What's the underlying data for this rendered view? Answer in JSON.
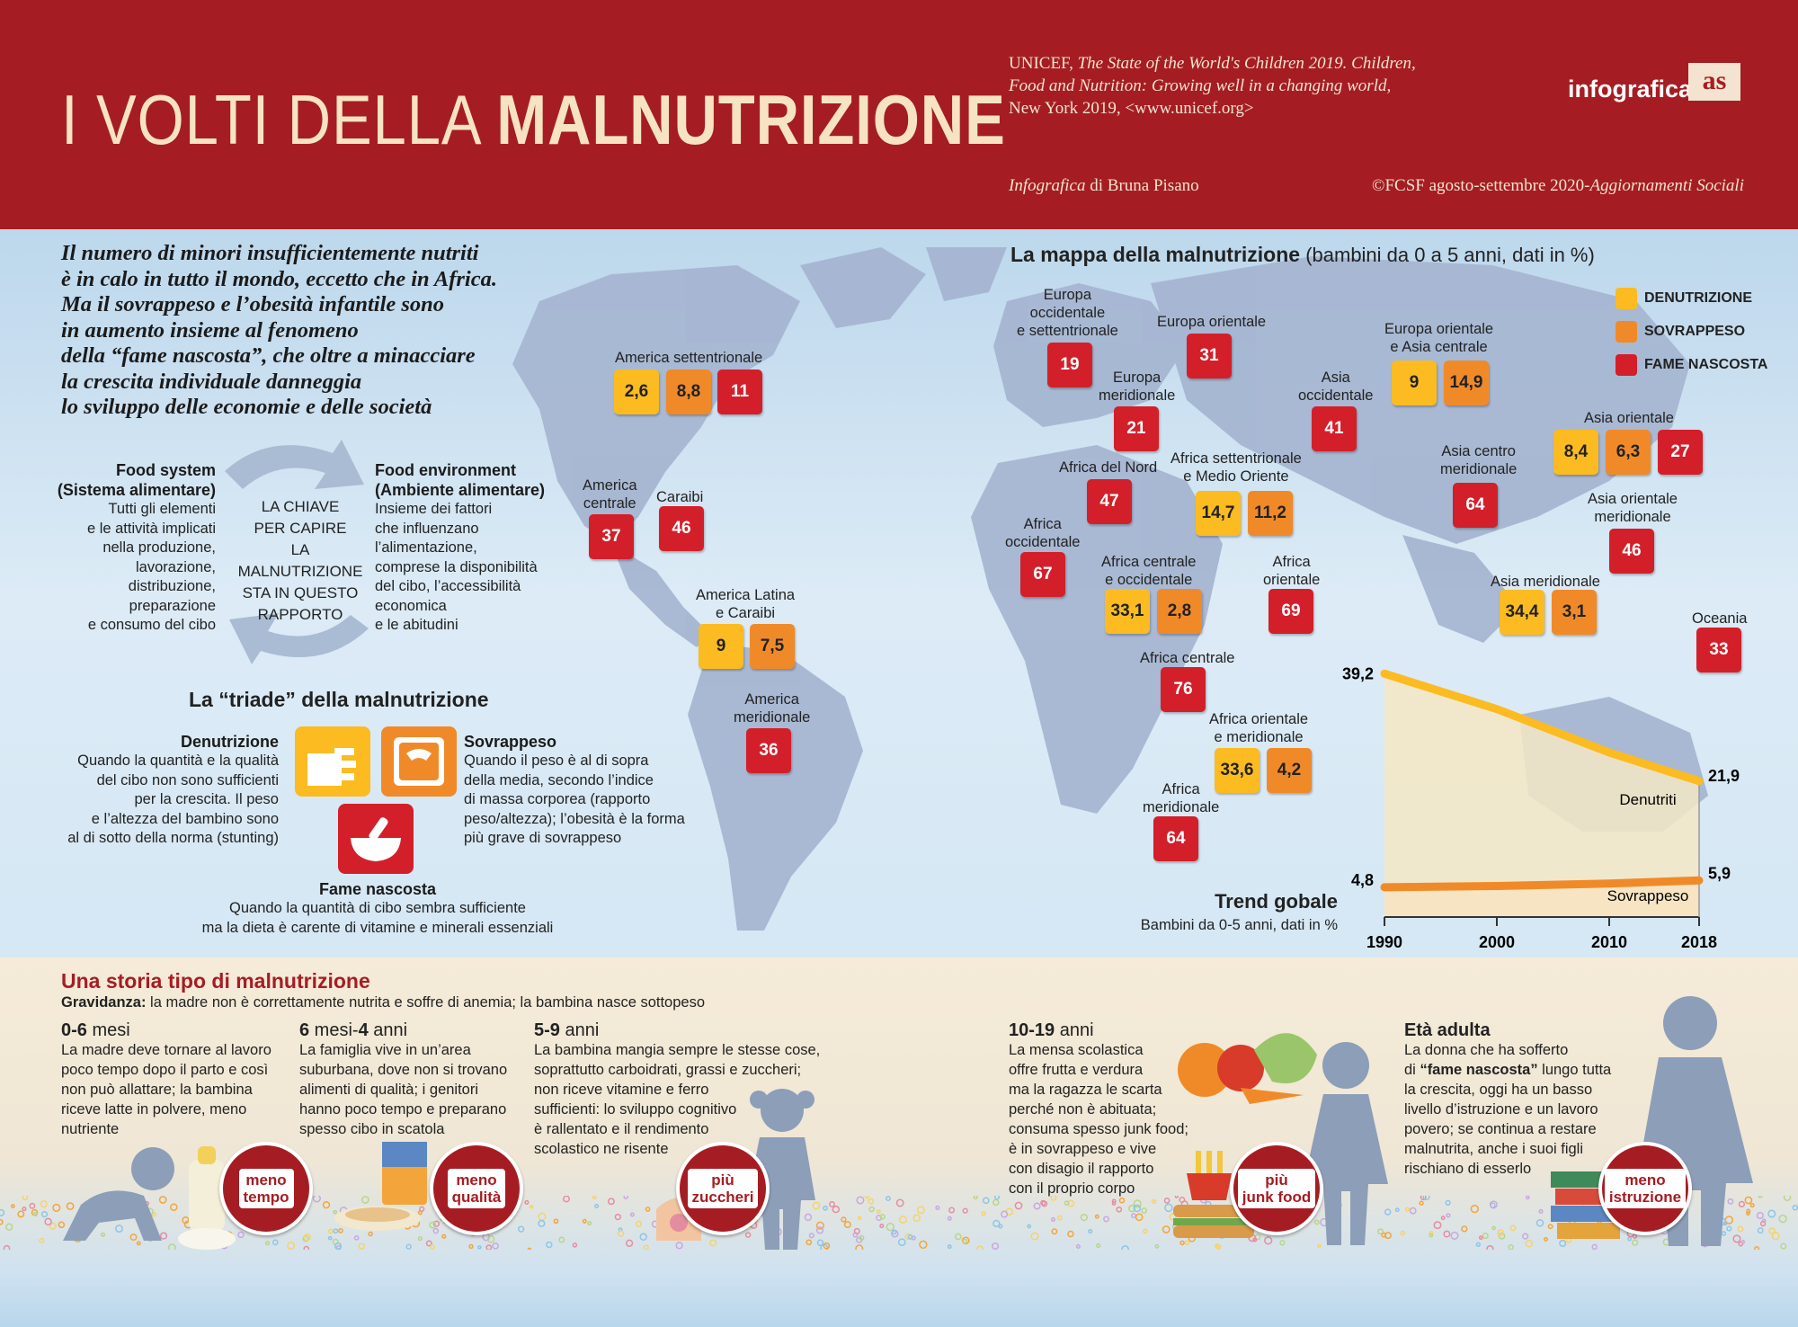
{
  "header": {
    "title_light": "I VOLTI DELLA ",
    "title_bold": "MALNUTRIZIONE",
    "source_line1_plain": "UNICEF, ",
    "source_line1_italic": "The State of the World's Children 2019. Children,",
    "source_line2": "Food and Nutrition: Growing well in a changing world,",
    "source_line3": "New York 2019, <www.unicef.org>",
    "credit_italic": "Infografica",
    "credit_rest": " di Bruna Pisano",
    "copyright_plain": "©FCSF agosto-settembre 2020-",
    "copyright_italic": "Aggiornamenti Sociali",
    "logo_text": "infografica",
    "logo_mark": "as"
  },
  "intro": [
    "Il numero di minori insufficientemente nutriti",
    "è in calo in tutto il mondo, eccetto che in Africa.",
    "Ma il sovrappeso e l’obesità infantile sono",
    "in aumento insieme al fenomeno",
    "della “fame nascosta”, che oltre a minacciare",
    "la crescita individuale danneggia",
    "lo sviluppo delle economie e delle società"
  ],
  "food_system": {
    "title": "Food system",
    "subtitle": "(Sistema alimentare)",
    "text": [
      "Tutti gli elementi",
      "e le attività implicati",
      "nella produzione,",
      "lavorazione,",
      "distribuzione,",
      "preparazione",
      "e consumo del cibo"
    ]
  },
  "food_environment": {
    "title": "Food environment",
    "subtitle": "(Ambiente alimentare)",
    "text": [
      "Insieme dei fattori",
      "che influenzano",
      "l’alimentazione,",
      "comprese la disponibilità",
      "del cibo, l’accessibilità",
      "economica",
      "e le abitudini"
    ]
  },
  "key": [
    "LA CHIAVE",
    "PER CAPIRE",
    "LA MALNUTRIZIONE",
    "STA IN QUESTO",
    "RAPPORTO"
  ],
  "triade": {
    "title": "La “triade” della malnutrizione",
    "denutrizione": {
      "title": "Denutrizione",
      "text": [
        "Quando la quantità e la qualità",
        "del cibo non sono sufficienti",
        "per la crescita. Il peso",
        "e l’altezza del bambino sono",
        "al di sotto della norma (stunting)"
      ]
    },
    "sovrappeso": {
      "title": "Sovrappeso",
      "text": [
        "Quando il peso è al di sopra",
        "della media, secondo l’indice",
        "di massa corporea (rapporto",
        "peso/altezza); l’obesità è la forma",
        "più grave di sovrappeso"
      ]
    },
    "fame": {
      "title": "Fame nascosta",
      "text": [
        "Quando la quantità di cibo sembra sufficiente",
        "ma la dieta è carente di vitamine e minerali essenziali"
      ]
    }
  },
  "map": {
    "title_bold": "La mappa della malnutrizione",
    "title_rest": " (bambini da 0 a 5 anni, dati in %)",
    "legend": [
      {
        "label": "DENUTRIZIONE",
        "color": "#fbbb21"
      },
      {
        "label": "SOVRAPPESO",
        "color": "#f08a29"
      },
      {
        "label": "FAME NASCOSTA",
        "color": "#d31f2a"
      }
    ],
    "regions": [
      {
        "name": [
          "America settentrionale"
        ],
        "values": [
          "2,6",
          "8,8",
          "11"
        ]
      },
      {
        "name": [
          "America",
          "centrale"
        ],
        "values": [
          "37"
        ]
      },
      {
        "name": [
          "Caraibi"
        ],
        "values": [
          "46"
        ]
      },
      {
        "name": [
          "America Latina",
          "e Caraibi"
        ],
        "values": [
          "9",
          "7,5"
        ]
      },
      {
        "name": [
          "America",
          "meridionale"
        ],
        "values": [
          "36"
        ]
      },
      {
        "name": [
          "Europa",
          "occidentale",
          "e settentrionale"
        ],
        "values": [
          "19"
        ]
      },
      {
        "name": [
          "Europa orientale"
        ],
        "values": [
          "31"
        ]
      },
      {
        "name": [
          "Europa",
          "meridionale"
        ],
        "values": [
          "21"
        ]
      },
      {
        "name": [
          "Asia",
          "occidentale"
        ],
        "values": [
          "41"
        ]
      },
      {
        "name": [
          "Europa orientale",
          "e Asia centrale"
        ],
        "values": [
          "9",
          "14,9"
        ]
      },
      {
        "name": [
          "Asia orientale"
        ],
        "values": [
          "8,4",
          "6,3",
          "27"
        ]
      },
      {
        "name": [
          "Africa del Nord"
        ],
        "values": [
          "47"
        ]
      },
      {
        "name": [
          "Africa settentrionale",
          "e Medio Oriente"
        ],
        "values": [
          "14,7",
          "11,2"
        ]
      },
      {
        "name": [
          "Asia centro",
          "meridionale"
        ],
        "values": [
          "64"
        ]
      },
      {
        "name": [
          "Asia orientale",
          "meridionale"
        ],
        "values": [
          "46"
        ]
      },
      {
        "name": [
          "Africa",
          "occidentale"
        ],
        "values": [
          "67"
        ]
      },
      {
        "name": [
          "Africa centrale",
          "e occidentale"
        ],
        "values": [
          "33,1",
          "2,8"
        ]
      },
      {
        "name": [
          "Africa",
          "orientale"
        ],
        "values": [
          "69"
        ]
      },
      {
        "name": [
          "Asia meridionale"
        ],
        "values": [
          "34,4",
          "3,1"
        ]
      },
      {
        "name": [
          "Oceania"
        ],
        "values": [
          "33"
        ]
      },
      {
        "name": [
          "Africa centrale"
        ],
        "values": [
          "76"
        ]
      },
      {
        "name": [
          "Africa orientale",
          "e meridionale"
        ],
        "values": [
          "33,6",
          "4,2"
        ]
      },
      {
        "name": [
          "Africa",
          "meridionale"
        ],
        "values": [
          "64"
        ]
      }
    ]
  },
  "chart_data": {
    "type": "area",
    "title": "Trend gobale",
    "subtitle": "Bambini da 0-5 anni, dati in %",
    "x": [
      1990,
      2000,
      2010,
      2018
    ],
    "x_ticks": [
      "1990",
      "2000",
      "2010",
      "2018"
    ],
    "series": [
      {
        "name": "Denutriti",
        "x": [
          1990,
          2000,
          2010,
          2018
        ],
        "values": [
          39.2,
          33.5,
          26.5,
          21.9
        ],
        "color": "#fbbb21",
        "start_label": "39,2",
        "end_label": "21,9"
      },
      {
        "name": "Sovrappeso",
        "x": [
          1990,
          2000,
          2010,
          2018
        ],
        "values": [
          4.8,
          5.0,
          5.4,
          5.9
        ],
        "color": "#f08a29",
        "start_label": "4,8",
        "end_label": "5,9"
      }
    ],
    "ylim": [
      0,
      42
    ]
  },
  "story": {
    "title": "Una storia tipo di malnutrizione",
    "gravidanza_label": "Gravidanza:",
    "gravidanza_text": " la madre non è correttamente nutrita e soffre di anemia; la bambina nasce sottopeso",
    "stages": [
      {
        "age_bold": "0-6",
        "age_rest": " mesi",
        "text": [
          "La madre deve tornare al lavoro",
          "poco tempo dopo il parto e così",
          "non può allattare; la bambina",
          "riceve latte in polvere, meno",
          "nutriente"
        ],
        "badge": [
          "meno",
          "tempo"
        ]
      },
      {
        "age_bold": "6",
        "age_mid": " mesi-",
        "age_bold2": "4",
        "age_rest": " anni",
        "text": [
          "La famiglia vive in un’area",
          "suburbana, dove non si trovano",
          "alimenti di qualità; i genitori",
          "hanno poco tempo e preparano",
          "spesso cibo in scatola"
        ],
        "badge": [
          "meno",
          "qualità"
        ]
      },
      {
        "age_bold": "5-9",
        "age_rest": " anni",
        "text": [
          "La bambina mangia sempre le stesse cose,",
          "soprattutto carboidrati, grassi e zuccheri;",
          "non riceve vitamine e ferro",
          "sufficienti: lo sviluppo cognitivo",
          "è rallentato e il rendimento",
          "scolastico ne risente"
        ],
        "badge": [
          "più",
          "zuccheri"
        ]
      },
      {
        "age_bold": "10-19",
        "age_rest": " anni",
        "text": [
          "La mensa scolastica",
          "offre frutta e verdura",
          "ma la ragazza le scarta",
          "perché non è abituata;",
          "consuma spesso junk food;",
          "è in sovrappeso e vive",
          "con disagio il rapporto",
          "con il proprio corpo"
        ],
        "badge": [
          "più",
          "junk food"
        ]
      },
      {
        "age_bold": "Età adulta",
        "age_rest": "",
        "text_line1": "La donna che ha sofferto",
        "text_line2_pre": "di ",
        "text_line2_bold": "“fame nascosta”",
        "text_line2_post": " lungo tutta",
        "text": [
          "la crescita, oggi ha un basso",
          "livello d’istruzione e un lavoro",
          "povero; se continua a restare",
          "malnutrita, anche i suoi figli",
          "rischiano di esserlo"
        ],
        "badge": [
          "meno",
          "istruzione"
        ]
      }
    ]
  }
}
